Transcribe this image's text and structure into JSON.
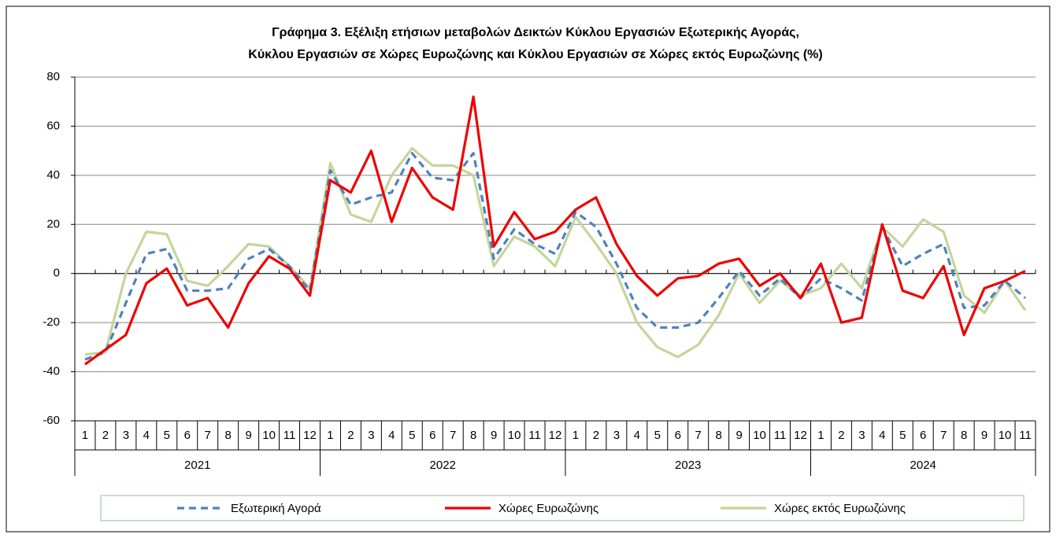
{
  "chart_data": {
    "type": "line",
    "title": [
      "Γράφημα 3. Εξέλιξη  ετήσιων μεταβολών Δεικτών Κύκλου Εργασιών Εξωτερικής Αγοράς,",
      "Κύκλου Εργασιών σε Χώρες Ευρωζώνης και Κύκλου Εργασιών σε Χώρες εκτός Ευρωζώνης (%)"
    ],
    "categories": [
      "1",
      "2",
      "3",
      "4",
      "5",
      "6",
      "7",
      "8",
      "9",
      "10",
      "11",
      "12",
      "1",
      "2",
      "3",
      "4",
      "5",
      "6",
      "7",
      "8",
      "9",
      "10",
      "11",
      "12",
      "1",
      "2",
      "3",
      "4",
      "5",
      "6",
      "7",
      "8",
      "9",
      "10",
      "11",
      "12",
      "1",
      "2",
      "3",
      "4",
      "5",
      "6",
      "7",
      "8",
      "9",
      "10",
      "11"
    ],
    "groups": [
      {
        "name": "2021",
        "size": 12
      },
      {
        "name": "2022",
        "size": 12
      },
      {
        "name": "2023",
        "size": 12
      },
      {
        "name": "2024",
        "size": 11
      }
    ],
    "series": [
      {
        "name": "Εξωτερική Αγορά",
        "color": "#4f81bd",
        "dashed": true,
        "values": [
          -35,
          -32,
          -12,
          8,
          10,
          -7,
          -7,
          -6,
          6,
          10,
          3,
          -7,
          42,
          28,
          31,
          33,
          49,
          39,
          38,
          49,
          6,
          18,
          12,
          8,
          25,
          19,
          4,
          -14,
          -22,
          -22,
          -20,
          -10,
          1,
          -9,
          -2,
          -10,
          -2,
          -6,
          -11,
          19,
          3,
          8,
          12,
          -14,
          -13,
          -3,
          -10
        ]
      },
      {
        "name": "Χώρες Ευρωζώνης",
        "color": "#ee0000",
        "dashed": false,
        "values": [
          -37,
          -31,
          -25,
          -4,
          2,
          -13,
          -10,
          -22,
          -4,
          7,
          2,
          -9,
          38,
          33,
          50,
          21,
          43,
          31,
          26,
          72,
          11,
          25,
          14,
          17,
          26,
          31,
          12,
          -1,
          -9,
          -2,
          -1,
          4,
          6,
          -5,
          0,
          -10,
          4,
          -20,
          -18,
          20,
          -7,
          -10,
          3,
          -25,
          -6,
          -3,
          1
        ]
      },
      {
        "name": "Χώρες εκτός Ευρωζώνης",
        "color": "#c3d69b",
        "dashed": false,
        "values": [
          -33,
          -32,
          0,
          17,
          16,
          -3,
          -5,
          3,
          12,
          11,
          3,
          -6,
          45,
          24,
          21,
          40,
          51,
          44,
          44,
          40,
          3,
          15,
          11,
          3,
          23,
          12,
          0,
          -20,
          -30,
          -34,
          -29,
          -17,
          0,
          -12,
          -3,
          -9,
          -6,
          4,
          -6,
          19,
          11,
          22,
          17,
          -9,
          -16,
          -3,
          -15
        ]
      }
    ],
    "ylim": [
      -60,
      80
    ],
    "yticks": [
      -60,
      -40,
      -20,
      0,
      20,
      40,
      60,
      80
    ],
    "grid": true
  }
}
